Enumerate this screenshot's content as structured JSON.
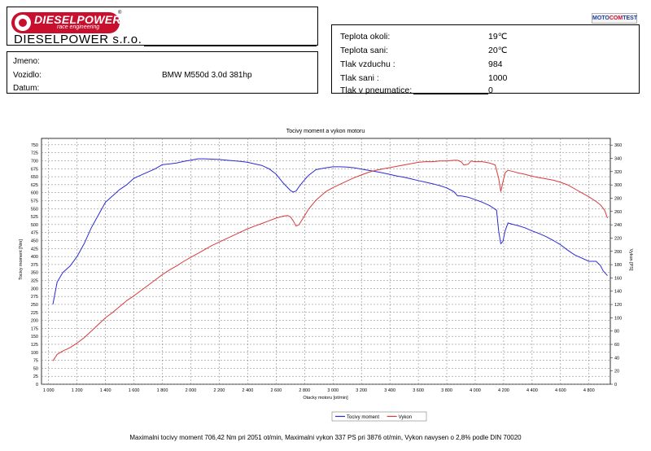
{
  "header": {
    "logo_main": "DIESELPOWER",
    "logo_sub": "race engineering",
    "logo_reg": "®",
    "company": "DIESELPOWER s.r.o.",
    "motocomtest": {
      "pre": "MOTO",
      "mid": "COM",
      "post": "TEST"
    }
  },
  "info": {
    "jmeno_label": "Jmeno:",
    "jmeno_value": "",
    "vozidlo_label": "Vozidlo:",
    "vozidlo_value": "BMW M550d 3.0d 381hp",
    "datum_label": "Datum:",
    "datum_value": ""
  },
  "conditions": [
    {
      "label": "Teplota okoli:",
      "value": "19℃"
    },
    {
      "label": "Teplota sani:",
      "value": "20℃"
    },
    {
      "label": "Tlak vzduchu :",
      "value": "984"
    },
    {
      "label": "Tlak sani :",
      "value": "1000"
    },
    {
      "label": "Tlak v pneumatice:",
      "value": "0"
    }
  ],
  "footer": "Maximalni tocivy moment 706,42 Nm pri 2051 ot/min,  Maximalni vykon 337 PS pri 3876 ot/min,  Vykon navysen o 2,8% podle DIN 70020",
  "chart_data": {
    "type": "line",
    "title": "Tocivy moment a vykon motoru",
    "xlabel": "Otacky motoru [ot/min]",
    "ylabel": "Tocivy moment [Nm]",
    "y2label": "Vykon [PS]",
    "xlim": [
      950,
      4950
    ],
    "ylim": [
      0,
      770
    ],
    "y2lim": [
      0,
      370
    ],
    "x_ticks": [
      1000,
      1200,
      1400,
      1600,
      1800,
      2000,
      2200,
      2400,
      2600,
      2800,
      3000,
      3200,
      3400,
      3600,
      3800,
      4000,
      4200,
      4400,
      4600,
      4800
    ],
    "x_tick_labels": [
      "1 000",
      "1 200",
      "1 400",
      "1 600",
      "1 800",
      "2 000",
      "2 200",
      "2 400",
      "2 600",
      "2 800",
      "3 000",
      "3 200",
      "3 400",
      "3 600",
      "3 800",
      "4 000",
      "4 200",
      "4 400",
      "4 600",
      "4 800"
    ],
    "y_ticks": [
      0,
      25,
      50,
      75,
      100,
      125,
      150,
      175,
      200,
      225,
      250,
      275,
      300,
      325,
      350,
      375,
      400,
      425,
      450,
      475,
      500,
      525,
      550,
      575,
      600,
      625,
      650,
      675,
      700,
      725,
      750
    ],
    "y_tick_labels": [
      "0",
      "25",
      "50",
      "75",
      "100",
      "125",
      "150",
      "175",
      "200",
      "225",
      "250",
      "275",
      "300",
      "325",
      "350",
      "375",
      "400",
      "425",
      "450",
      "475",
      "500",
      "525",
      "550",
      "575",
      "600",
      "625",
      "650",
      "675",
      "700",
      "725",
      "750"
    ],
    "y2_ticks": [
      0,
      20,
      40,
      60,
      80,
      100,
      120,
      140,
      160,
      180,
      200,
      220,
      240,
      260,
      280,
      300,
      320,
      340,
      360
    ],
    "y2_tick_labels": [
      "0",
      "20",
      "40",
      "60",
      "80",
      "100",
      "120",
      "140",
      "160",
      "180",
      "200",
      "220",
      "240",
      "260",
      "280",
      "300",
      "320",
      "340",
      "360"
    ],
    "grid": true,
    "legend_position": "bottom-right",
    "series": [
      {
        "name": "Tocivy moment",
        "axis": "left",
        "color": "#2b2bd6",
        "x": [
          1030,
          1060,
          1100,
          1150,
          1200,
          1250,
          1300,
          1350,
          1400,
          1450,
          1500,
          1550,
          1600,
          1650,
          1700,
          1750,
          1800,
          1850,
          1900,
          1950,
          2000,
          2051,
          2100,
          2150,
          2200,
          2250,
          2300,
          2350,
          2400,
          2450,
          2500,
          2550,
          2600,
          2650,
          2700,
          2720,
          2740,
          2760,
          2790,
          2830,
          2880,
          2950,
          3000,
          3050,
          3100,
          3150,
          3200,
          3250,
          3300,
          3350,
          3400,
          3450,
          3500,
          3550,
          3600,
          3650,
          3700,
          3750,
          3800,
          3850,
          3876,
          3900,
          3950,
          4000,
          4050,
          4100,
          4150,
          4165,
          4180,
          4195,
          4210,
          4230,
          4270,
          4300,
          4350,
          4400,
          4450,
          4500,
          4550,
          4600,
          4650,
          4700,
          4750,
          4800,
          4850,
          4880,
          4900,
          4930
        ],
        "y": [
          250,
          320,
          350,
          370,
          400,
          440,
          490,
          530,
          570,
          590,
          610,
          625,
          645,
          655,
          665,
          675,
          688,
          690,
          693,
          698,
          702,
          706,
          706,
          705,
          704,
          702,
          700,
          698,
          695,
          690,
          685,
          675,
          658,
          630,
          607,
          602,
          605,
          618,
          635,
          655,
          672,
          678,
          681,
          681,
          680,
          678,
          674,
          670,
          666,
          662,
          657,
          652,
          648,
          643,
          638,
          633,
          628,
          622,
          615,
          603,
          590,
          590,
          586,
          578,
          570,
          560,
          545,
          480,
          440,
          448,
          480,
          505,
          500,
          497,
          490,
          480,
          472,
          462,
          450,
          437,
          420,
          405,
          395,
          385,
          385,
          372,
          355,
          340
        ]
      },
      {
        "name": "Vykon",
        "axis": "right",
        "color": "#d83a3a",
        "x": [
          1030,
          1060,
          1100,
          1150,
          1200,
          1250,
          1300,
          1350,
          1400,
          1450,
          1500,
          1550,
          1600,
          1650,
          1700,
          1750,
          1800,
          1850,
          1900,
          1950,
          2000,
          2051,
          2100,
          2150,
          2200,
          2250,
          2300,
          2350,
          2400,
          2450,
          2500,
          2550,
          2600,
          2650,
          2680,
          2700,
          2720,
          2740,
          2760,
          2790,
          2830,
          2880,
          2950,
          3000,
          3050,
          3100,
          3150,
          3200,
          3250,
          3300,
          3350,
          3400,
          3450,
          3500,
          3550,
          3600,
          3650,
          3700,
          3750,
          3800,
          3850,
          3876,
          3900,
          3920,
          3950,
          3970,
          4000,
          4050,
          4100,
          4140,
          4165,
          4180,
          4195,
          4210,
          4230,
          4270,
          4300,
          4350,
          4400,
          4450,
          4500,
          4550,
          4600,
          4650,
          4700,
          4750,
          4800,
          4850,
          4880,
          4910,
          4930
        ],
        "y": [
          35,
          45,
          50,
          55,
          62,
          70,
          80,
          90,
          100,
          108,
          117,
          126,
          133,
          141,
          149,
          157,
          165,
          172,
          178,
          185,
          191,
          197,
          203,
          209,
          214,
          219,
          224,
          229,
          234,
          238,
          242,
          246,
          250,
          253,
          254,
          252,
          246,
          238,
          240,
          250,
          264,
          277,
          290,
          296,
          301,
          306,
          311,
          315,
          319,
          322,
          324,
          326,
          328,
          330,
          332,
          334,
          335,
          335,
          336,
          336,
          337,
          337,
          335,
          330,
          331,
          336,
          335,
          335,
          333,
          330,
          310,
          290,
          305,
          318,
          322,
          320,
          318,
          316,
          313,
          311,
          309,
          307,
          304,
          300,
          294,
          288,
          282,
          275,
          270,
          262,
          250
        ]
      }
    ]
  }
}
